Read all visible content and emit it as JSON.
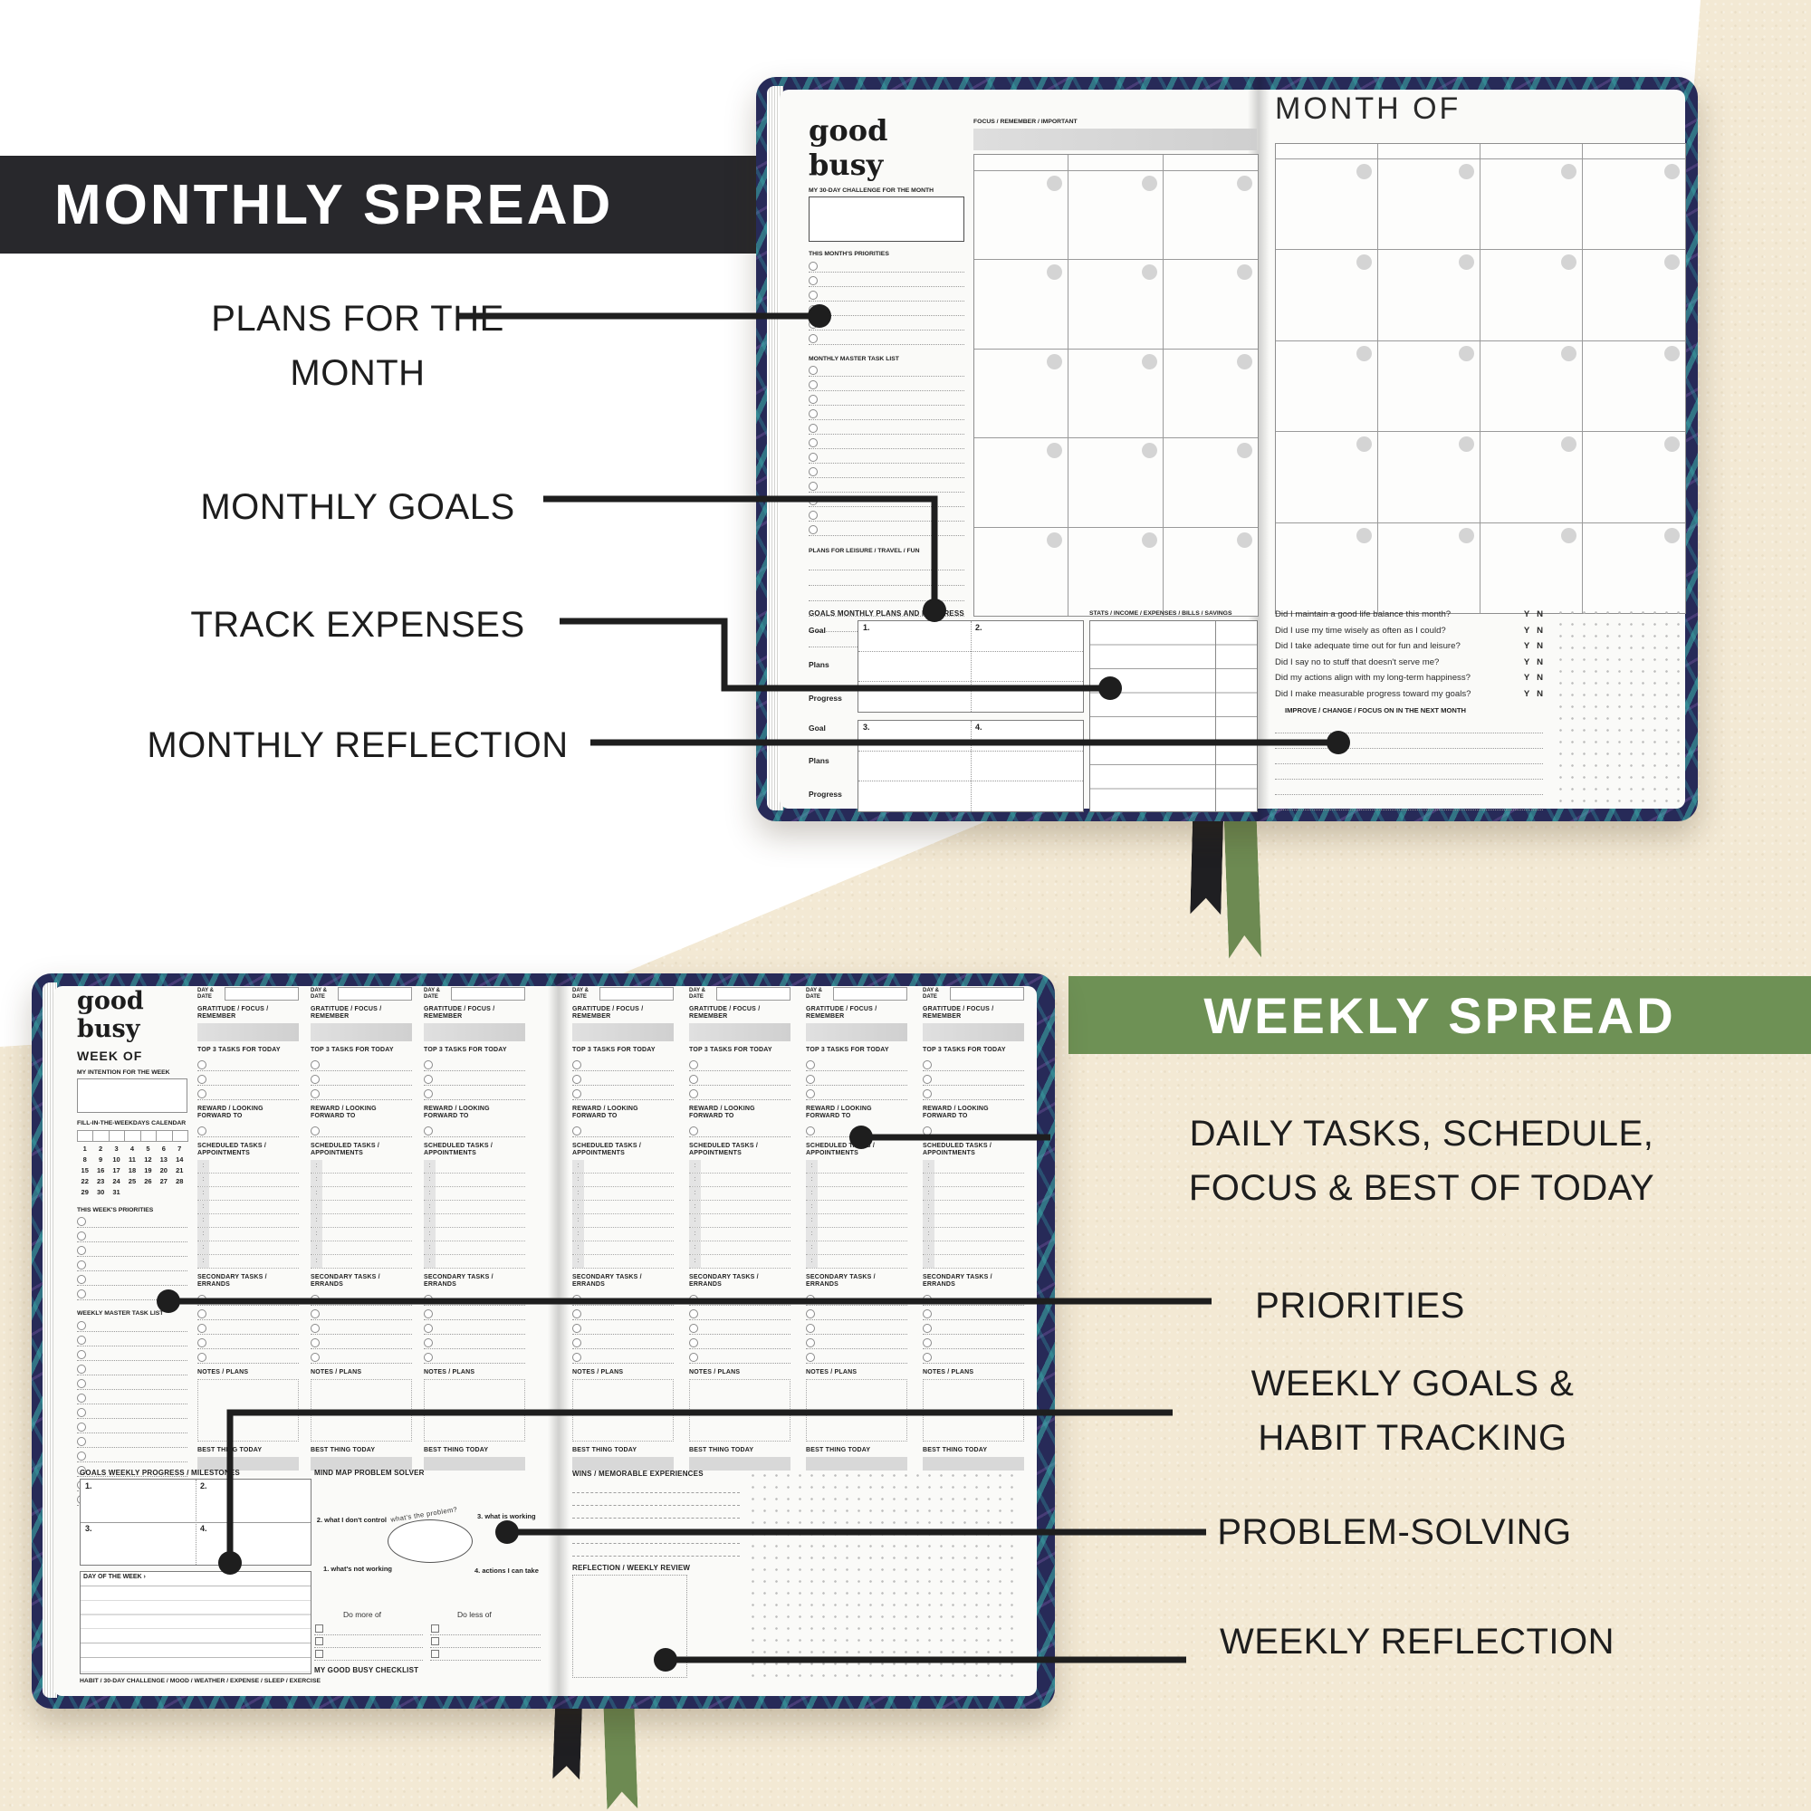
{
  "brand": {
    "logo": "good busy"
  },
  "monthly": {
    "banner": "MONTHLY SPREAD",
    "callout_plans": "PLANS FOR THE MONTH",
    "callout_goals": "MONTHLY GOALS",
    "callout_expenses": "TRACK EXPENSES",
    "callout_reflection": "MONTHLY REFLECTION",
    "left_page": {
      "challenge_label": "MY 30-DAY CHALLENGE FOR THE MONTH",
      "priorities_label": "THIS MONTH'S PRIORITIES",
      "master_label": "MONTHLY MASTER TASK LIST",
      "leisure_label": "PLANS FOR LEISURE / TRAVEL / FUN",
      "focus_label": "FOCUS / REMEMBER / IMPORTANT",
      "goals_label": "GOALS MONTHLY PLANS AND PROGRESS",
      "stats_label": "STATS / INCOME / EXPENSES / BILLS / SAVINGS",
      "row_goal": "Goal",
      "row_plans": "Plans",
      "row_progress": "Progress",
      "goal_numbers": [
        "1.",
        "2.",
        "3.",
        "4."
      ]
    },
    "right_page": {
      "title": "MONTH OF",
      "questions": [
        "Did I maintain a good life balance this month?",
        "Did I use my time wisely as often as I could?",
        "Did I take adequate time out for fun and leisure?",
        "Did I say no to stuff that doesn't serve me?",
        "Did my actions align with my long-term happiness?",
        "Did I make measurable progress toward my goals?"
      ],
      "yn": "Y   N",
      "improve_label": "IMPROVE / CHANGE / FOCUS ON IN THE NEXT MONTH"
    }
  },
  "weekly": {
    "banner": "WEEKLY SPREAD",
    "callout_daily": "DAILY TASKS, SCHEDULE, FOCUS & BEST OF TODAY",
    "callout_priorities": "PRIORITIES",
    "callout_goals": "WEEKLY GOALS & HABIT TRACKING",
    "callout_problem": "PROBLEM-SOLVING",
    "callout_reflection": "WEEKLY REFLECTION",
    "sidebar": {
      "week_of": "WEEK OF",
      "intention_label": "MY INTENTION FOR THE WEEK",
      "fill_in_label": "FILL-IN-THE-WEEKDAYS CALENDAR",
      "calendar_rows": [
        "1 2 3 4 5 6 7",
        "8 9 10 11 12 13 14",
        "15 16 17 18 19 20 21",
        "22 23 24 25 26 27 28",
        "29 30 31"
      ],
      "priorities_label": "THIS WEEK'S PRIORITIES",
      "master_label": "WEEKLY MASTER TASK LIST"
    },
    "day_column": {
      "day_date": "DAY & DATE",
      "gratitude": "GRATITUDE / FOCUS / REMEMBER",
      "top3": "TOP 3 TASKS FOR TODAY",
      "reward": "REWARD / LOOKING FORWARD TO",
      "scheduled": "SCHEDULED TASKS / APPOINTMENTS",
      "secondary": "SECONDARY TASKS / ERRANDS",
      "notes": "NOTES / PLANS",
      "best": "BEST THING TODAY"
    },
    "bottom_left": {
      "goals_label": "GOALS WEEKLY PROGRESS / MILESTONES",
      "goal_numbers": [
        "1.",
        "2.",
        "3.",
        "4."
      ],
      "day_of_week_label": "DAY OF THE WEEK ›",
      "habit_caption": "HABIT / 30-DAY CHALLENGE / MOOD / WEATHER / EXPENSE / SLEEP / EXERCISE",
      "mindmap_title": "MIND MAP PROBLEM SOLVER",
      "mindmap_center": "what's the problem?",
      "mindmap_item1": "1. what's not working",
      "mindmap_item2": "2. what I don't control",
      "mindmap_item3": "3. what is working",
      "mindmap_item4": "4. actions I can take",
      "do_more": "Do more of",
      "do_less": "Do less of",
      "checklist_label": "MY GOOD BUSY CHECKLIST"
    },
    "right_page": {
      "wins_label": "WINS / MEMORABLE EXPERIENCES",
      "reflection_label": "REFLECTION / WEEKLY REVIEW"
    }
  },
  "colors": {
    "background_cream": "#f3e9d4",
    "background_white": "#ffffff",
    "banner_dark": "#28282c",
    "banner_green": "#6e9155",
    "cover_navy": "#272a58",
    "leaf_teal": "#3ebdb2",
    "leaf_purple": "#9b6bc4",
    "ribbon_green": "#6d8a52",
    "ribbon_black": "#1f1f22",
    "callout_line": "#1e1e1e",
    "page_white": "#fafaf8",
    "grid_gray": "#9a9a9a",
    "fill_gray": "#d8d8d8"
  }
}
